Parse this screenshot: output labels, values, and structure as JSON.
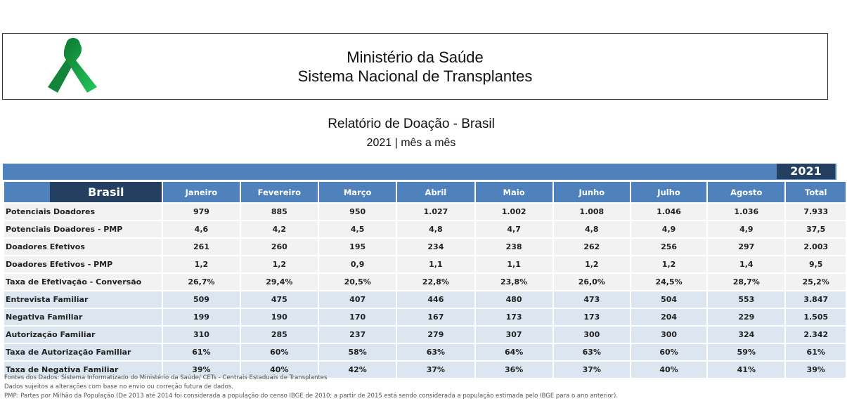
{
  "header": {
    "line1": "Ministério da Saúde",
    "line2": "Sistema Nacional de Transplantes",
    "logo_icon": "green-ribbon-icon"
  },
  "report": {
    "title": "Relatório de Doação -  Brasil",
    "subtitle": "2021 | mês a mês"
  },
  "table": {
    "year": "2021",
    "region": "Brasil",
    "columns": [
      "Janeiro",
      "Fevereiro",
      "Março",
      "Abril",
      "Maio",
      "Junho",
      "Julho",
      "Agosto",
      "Total"
    ],
    "rows": [
      {
        "label": "Potenciais Doadores",
        "values": [
          "979",
          "885",
          "950",
          "1.027",
          "1.002",
          "1.008",
          "1.046",
          "1.036",
          "7.933"
        ]
      },
      {
        "label": "Potenciais Doadores - PMP",
        "values": [
          "4,6",
          "4,2",
          "4,5",
          "4,8",
          "4,7",
          "4,8",
          "4,9",
          "4,9",
          "37,5"
        ]
      },
      {
        "label": "Doadores Efetivos",
        "values": [
          "261",
          "260",
          "195",
          "234",
          "238",
          "262",
          "256",
          "297",
          "2.003"
        ]
      },
      {
        "label": "Doadores Efetivos - PMP",
        "values": [
          "1,2",
          "1,2",
          "0,9",
          "1,1",
          "1,1",
          "1,2",
          "1,2",
          "1,4",
          "9,5"
        ]
      },
      {
        "label": "Taxa de Efetivação - Conversão",
        "values": [
          "26,7%",
          "29,4%",
          "20,5%",
          "22,8%",
          "23,8%",
          "26,0%",
          "24,5%",
          "28,7%",
          "25,2%"
        ]
      },
      {
        "label": "Entrevista Familiar",
        "values": [
          "509",
          "475",
          "407",
          "446",
          "480",
          "473",
          "504",
          "553",
          "3.847"
        ]
      },
      {
        "label": "Negativa Familiar",
        "values": [
          "199",
          "190",
          "170",
          "167",
          "173",
          "173",
          "204",
          "229",
          "1.505"
        ]
      },
      {
        "label": "Autorização Familiar",
        "values": [
          "310",
          "285",
          "237",
          "279",
          "307",
          "300",
          "300",
          "324",
          "2.342"
        ]
      },
      {
        "label": "Taxa de Autorização Familiar",
        "values": [
          "61%",
          "60%",
          "58%",
          "63%",
          "64%",
          "63%",
          "60%",
          "59%",
          "61%"
        ]
      },
      {
        "label": "Taxa de Negativa Familiar",
        "values": [
          "39%",
          "40%",
          "42%",
          "37%",
          "36%",
          "37%",
          "40%",
          "41%",
          "39%"
        ]
      }
    ]
  },
  "footnotes": [
    "Fontes dos Dados: Sistema Informatizado do Ministério da Saúde/ CETs - Centrais Estaduais de Transplantes",
    "Dados sujeitos a alterações com base no envio ou correção futura de dados.",
    "PMP: Partes por Milhão da População (De 2013 até 2014 foi considerada a população do censo IBGE de 2010; a partir de 2015 está sendo considerada a população estimada pelo IBGE para o ano anterior)."
  ],
  "colors": {
    "header_blue": "#4f81bd",
    "dark_blue": "#243f60",
    "row_gray": "#f2f2f2",
    "row_blue": "#dce6f1",
    "ribbon": "#1aa84a"
  }
}
